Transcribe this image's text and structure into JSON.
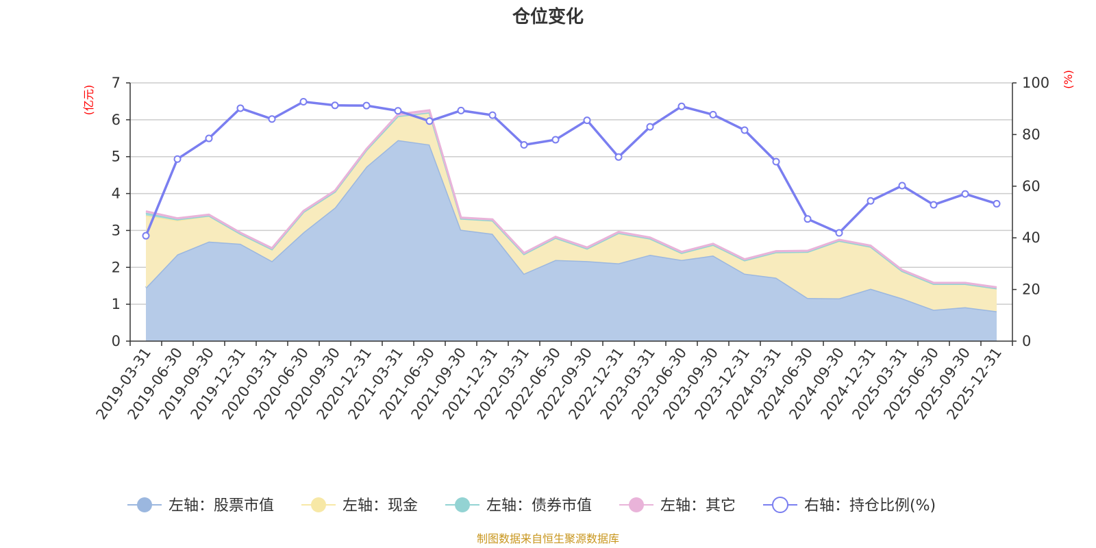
{
  "chart_data": {
    "type": "area",
    "title": "仓位变化",
    "left_unit": "(亿元)",
    "right_unit": "(%)",
    "source": "制图数据来自恒生聚源数据库",
    "left_ylim": [
      0,
      7
    ],
    "left_ticks": [
      "0",
      "1",
      "2",
      "3",
      "4",
      "5",
      "6",
      "7"
    ],
    "right_ylim": [
      0,
      100
    ],
    "right_ticks": [
      "0",
      "20",
      "40",
      "60",
      "80",
      "100"
    ],
    "grid": true,
    "legend_position": "bottom",
    "categories": [
      "2019-03-31",
      "2019-06-30",
      "2019-09-30",
      "2019-12-31",
      "2020-03-31",
      "2020-06-30",
      "2020-09-30",
      "2020-12-31",
      "2021-03-31",
      "2021-06-30",
      "2021-09-30",
      "2021-12-31",
      "2022-03-31",
      "2022-06-30",
      "2022-09-30",
      "2022-12-31",
      "2023-03-31",
      "2023-06-30",
      "2023-09-30",
      "2023-12-31",
      "2024-03-31",
      "2024-06-30",
      "2024-09-30",
      "2024-12-31",
      "2025-03-31",
      "2025-06-30",
      "2025-09-30",
      "2025-12-31"
    ],
    "series": [
      {
        "name": "左轴：股票市值",
        "axis": "left",
        "kind": "area",
        "color": "#9bb7df",
        "fill": "#b6cbe8",
        "values": [
          1.45,
          2.35,
          2.7,
          2.64,
          2.17,
          2.95,
          3.62,
          4.73,
          5.45,
          5.33,
          3.02,
          2.91,
          1.83,
          2.2,
          2.17,
          2.11,
          2.34,
          2.2,
          2.32,
          1.83,
          1.72,
          1.17,
          1.16,
          1.42,
          1.16,
          0.85,
          0.92,
          0.81
        ]
      },
      {
        "name": "左轴：现金",
        "axis": "left",
        "kind": "area",
        "color": "#f7e8a6",
        "fill": "#f8ebbd",
        "values": [
          1.96,
          0.92,
          0.7,
          0.27,
          0.32,
          0.55,
          0.43,
          0.45,
          0.65,
          0.87,
          0.3,
          0.36,
          0.53,
          0.6,
          0.34,
          0.82,
          0.44,
          0.19,
          0.29,
          0.36,
          0.69,
          1.25,
          1.56,
          1.14,
          0.74,
          0.7,
          0.63,
          0.62
        ]
      },
      {
        "name": "左轴：债券市值",
        "axis": "left",
        "kind": "area",
        "color": "#93d3d3",
        "fill": "#a7dcdc",
        "values": [
          0.07,
          0.03,
          0,
          0,
          0,
          0,
          0,
          0,
          0,
          0,
          0,
          0,
          0,
          0,
          0,
          0,
          0,
          0,
          0,
          0,
          0,
          0,
          0,
          0,
          0,
          0,
          0,
          0
        ]
      },
      {
        "name": "左轴：其它",
        "axis": "left",
        "kind": "area",
        "color": "#e9b3d9",
        "fill": "#eec7e3",
        "values": [
          0.04,
          0.03,
          0.03,
          0.03,
          0.03,
          0.03,
          0.03,
          0.03,
          0.05,
          0.06,
          0.03,
          0.03,
          0.03,
          0.03,
          0.03,
          0.03,
          0.03,
          0.03,
          0.03,
          0.03,
          0.03,
          0.03,
          0.03,
          0.03,
          0.03,
          0.03,
          0.03,
          0.03
        ]
      },
      {
        "name": "右轴：持仓比例(%)",
        "axis": "right",
        "kind": "line",
        "color": "#7a7ef0",
        "values": [
          40.8,
          70.5,
          78.5,
          90.2,
          86.0,
          92.7,
          91.3,
          91.2,
          89.2,
          85.2,
          89.3,
          87.5,
          76.0,
          78.0,
          85.5,
          71.3,
          83.0,
          90.9,
          87.7,
          81.7,
          69.5,
          47.3,
          41.9,
          54.3,
          60.2,
          52.8,
          57.0,
          53.2
        ]
      }
    ]
  }
}
